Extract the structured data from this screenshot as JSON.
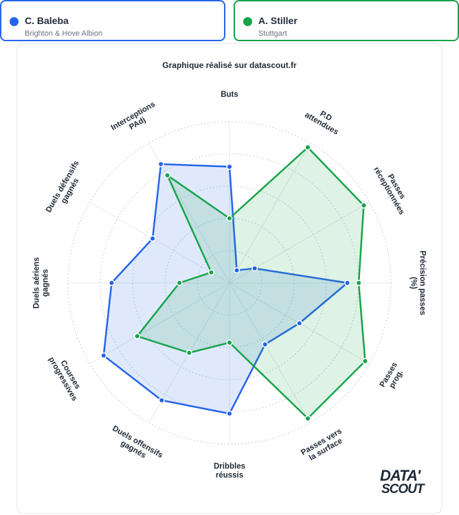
{
  "players": [
    {
      "name": "C. Baleba",
      "team": "Brighton & Hove Albion",
      "color": "#2563eb"
    },
    {
      "name": "A. Stiller",
      "team": "Stuttgart",
      "color": "#16a34a"
    }
  ],
  "subtitle": "Graphique réalisé sur datascout.fr",
  "logo": {
    "line1": "DATA'",
    "line2": "SCOUT"
  },
  "chart_data": {
    "type": "radar",
    "max": 100,
    "grid_rings": [
      20,
      40,
      60,
      80,
      100
    ],
    "axes": [
      [
        "Buts"
      ],
      [
        "P.D",
        "attendues"
      ],
      [
        "Passes",
        "réceptionnées"
      ],
      [
        "Précision passes",
        "(%)"
      ],
      [
        "Passes",
        "prog."
      ],
      [
        "Passes vers",
        "la surface"
      ],
      [
        "Dribbles",
        "réussis"
      ],
      [
        "Duels offensifs",
        "gagnés"
      ],
      [
        "Courses",
        "progressives"
      ],
      [
        "Duels aériens",
        "gagnés"
      ],
      [
        "Duels défensifs",
        "gagnés"
      ],
      [
        "Interceptions",
        "PAdj"
      ]
    ],
    "series": [
      {
        "name": "C. Baleba",
        "color": "#2563eb",
        "values": [
          72,
          9,
          18,
          73,
          50,
          44,
          81,
          84,
          90,
          73,
          55,
          85
        ]
      },
      {
        "name": "A. Stiller",
        "color": "#16a34a",
        "values": [
          40,
          97,
          96,
          80,
          97,
          97,
          37,
          50,
          66,
          31,
          13,
          77
        ]
      }
    ]
  }
}
